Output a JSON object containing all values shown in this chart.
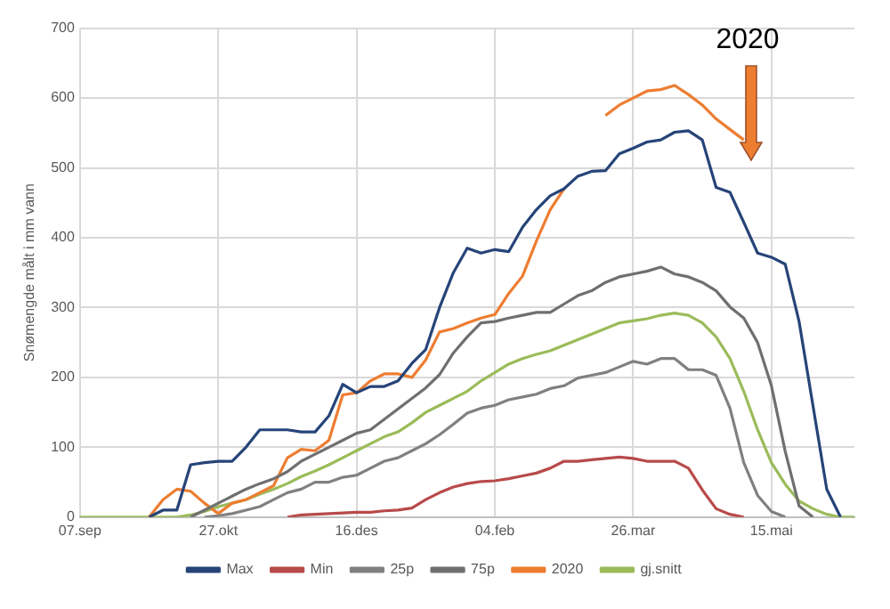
{
  "chart_data": {
    "type": "line",
    "ylabel": "Snømengde målt i mm vann",
    "categories": [
      "07.sep",
      null,
      null,
      null,
      null,
      null,
      null,
      null,
      null,
      null,
      "27.okt",
      null,
      null,
      null,
      null,
      null,
      null,
      null,
      null,
      null,
      "16.des",
      null,
      null,
      null,
      null,
      null,
      null,
      null,
      null,
      null,
      "04.feb",
      null,
      null,
      null,
      null,
      null,
      null,
      null,
      null,
      null,
      "26.mar",
      null,
      null,
      null,
      null,
      null,
      null,
      null,
      null,
      null,
      "15.mai",
      null,
      null,
      null,
      null,
      null,
      null
    ],
    "series": [
      {
        "name": "Max",
        "color": "#264478",
        "values": [
          null,
          null,
          null,
          null,
          null,
          0,
          10,
          10,
          75,
          78,
          80,
          80,
          100,
          125,
          125,
          125,
          122,
          122,
          145,
          190,
          178,
          187,
          187,
          195,
          220,
          240,
          300,
          350,
          385,
          378,
          383,
          380,
          415,
          440,
          460,
          470,
          488,
          495,
          496,
          520,
          528,
          537,
          540,
          551,
          553,
          540,
          472,
          465,
          422,
          378,
          372,
          362,
          280,
          160,
          40,
          0,
          null
        ]
      },
      {
        "name": "Min",
        "color": "#b84a4a",
        "values": [
          null,
          null,
          null,
          null,
          null,
          null,
          null,
          null,
          null,
          null,
          null,
          null,
          null,
          null,
          null,
          0,
          3,
          4,
          5,
          6,
          7,
          7,
          9,
          10,
          13,
          25,
          35,
          43,
          48,
          51,
          52,
          55,
          59,
          63,
          70,
          80,
          80,
          82,
          84,
          86,
          84,
          80,
          80,
          80,
          70,
          39,
          12,
          4,
          0,
          null,
          null,
          null,
          null,
          null,
          null,
          null,
          null
        ]
      },
      {
        "name": "25p",
        "color": "#808080",
        "values": [
          null,
          null,
          null,
          null,
          null,
          null,
          null,
          null,
          null,
          0,
          2,
          5,
          10,
          15,
          25,
          35,
          40,
          50,
          50,
          57,
          60,
          70,
          80,
          85,
          95,
          105,
          118,
          133,
          149,
          156,
          160,
          168,
          172,
          176,
          184,
          188,
          199,
          203,
          207,
          215,
          223,
          219,
          227,
          227,
          211,
          211,
          203,
          156,
          78,
          31,
          8,
          0,
          null,
          null,
          null,
          null,
          null
        ]
      },
      {
        "name": "75p",
        "color": "#6f6f6f",
        "values": [
          null,
          null,
          null,
          null,
          null,
          null,
          null,
          null,
          0,
          10,
          20,
          30,
          40,
          48,
          55,
          65,
          80,
          90,
          100,
          110,
          120,
          125,
          140,
          155,
          170,
          185,
          204,
          235,
          258,
          278,
          280,
          285,
          289,
          293,
          293,
          305,
          317,
          324,
          336,
          344,
          348,
          352,
          358,
          348,
          344,
          336,
          324,
          301,
          285,
          250,
          188,
          94,
          16,
          0,
          null,
          null,
          null
        ]
      },
      {
        "name": "2020",
        "color": "#ed7d31",
        "values": [
          null,
          null,
          null,
          null,
          null,
          0,
          25,
          40,
          37,
          20,
          5,
          20,
          25,
          35,
          45,
          85,
          97,
          95,
          110,
          175,
          178,
          195,
          205,
          205,
          200,
          225,
          265,
          270,
          278,
          285,
          290,
          320,
          345,
          395,
          440,
          470,
          null,
          null,
          575,
          590,
          600,
          610,
          612,
          618,
          605,
          590,
          570,
          555,
          540,
          null,
          null,
          null,
          null,
          null,
          null,
          null,
          null
        ]
      },
      {
        "name": "gj.snitt",
        "color": "#9bbb59",
        "values": [
          0,
          0,
          0,
          0,
          0,
          0,
          0,
          0,
          3,
          8,
          15,
          20,
          25,
          33,
          40,
          48,
          58,
          66,
          75,
          85,
          95,
          105,
          115,
          122,
          135,
          150,
          160,
          170,
          180,
          195,
          207,
          219,
          227,
          233,
          238,
          246,
          254,
          262,
          270,
          278,
          281,
          284,
          289,
          292,
          289,
          278,
          258,
          227,
          180,
          125,
          78,
          47,
          23,
          12,
          4,
          0,
          0
        ]
      }
    ],
    "ylim": [
      0,
      700
    ],
    "yticks": [
      0,
      100,
      200,
      300,
      400,
      500,
      600,
      700
    ],
    "annotations": [
      "2020"
    ],
    "grid": true,
    "legend": "bottom",
    "marker": "none",
    "line_style": "solid"
  }
}
